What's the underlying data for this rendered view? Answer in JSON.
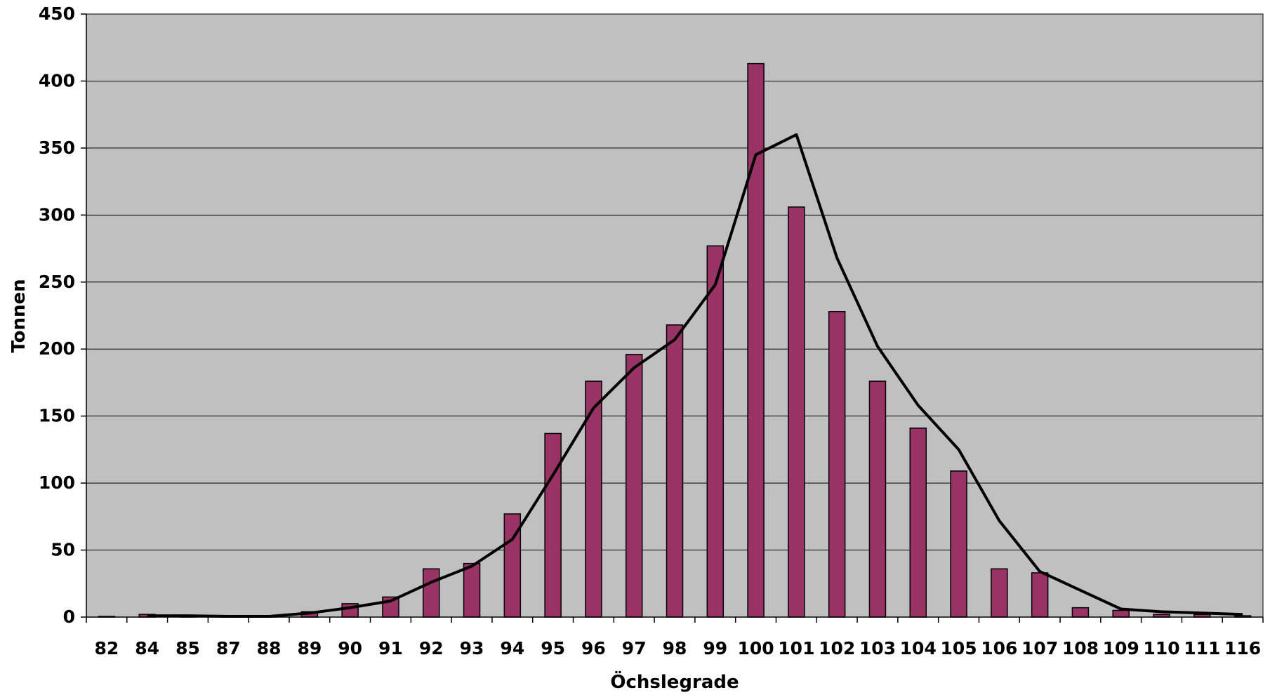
{
  "chart_data": {
    "type": "bar",
    "title": "",
    "xlabel": "Öchslegrade",
    "ylabel": "Tonnen",
    "ylim": [
      0,
      450
    ],
    "yticks": [
      0,
      50,
      100,
      150,
      200,
      250,
      300,
      350,
      400,
      450
    ],
    "grid": true,
    "legend": "none",
    "categories": [
      "82",
      "84",
      "85",
      "87",
      "88",
      "89",
      "90",
      "91",
      "92",
      "93",
      "94",
      "95",
      "96",
      "97",
      "98",
      "99",
      "100",
      "101",
      "102",
      "103",
      "104",
      "105",
      "106",
      "107",
      "108",
      "109",
      "110",
      "111",
      "116"
    ],
    "series": [
      {
        "type": "bar",
        "values": [
          0.5,
          2,
          1,
          0.5,
          0.5,
          4,
          10,
          15,
          36,
          40,
          77,
          137,
          176,
          196,
          218,
          277,
          413,
          306,
          228,
          176,
          141,
          109,
          36,
          33,
          7,
          5,
          2,
          2,
          1
        ]
      },
      {
        "type": "line",
        "values": [
          null,
          1,
          1,
          0.5,
          0.5,
          3,
          7,
          12,
          26,
          38,
          58,
          106,
          156,
          186,
          207,
          248,
          345,
          360,
          268,
          202,
          158,
          125,
          72,
          34,
          20,
          6,
          4,
          3,
          2
        ]
      }
    ],
    "colors": {
      "plot_background": "#c0c0c0",
      "bar_fill": "#993366",
      "bar_stroke": "#000000",
      "line": "#000000",
      "gridline": "#000000"
    }
  }
}
